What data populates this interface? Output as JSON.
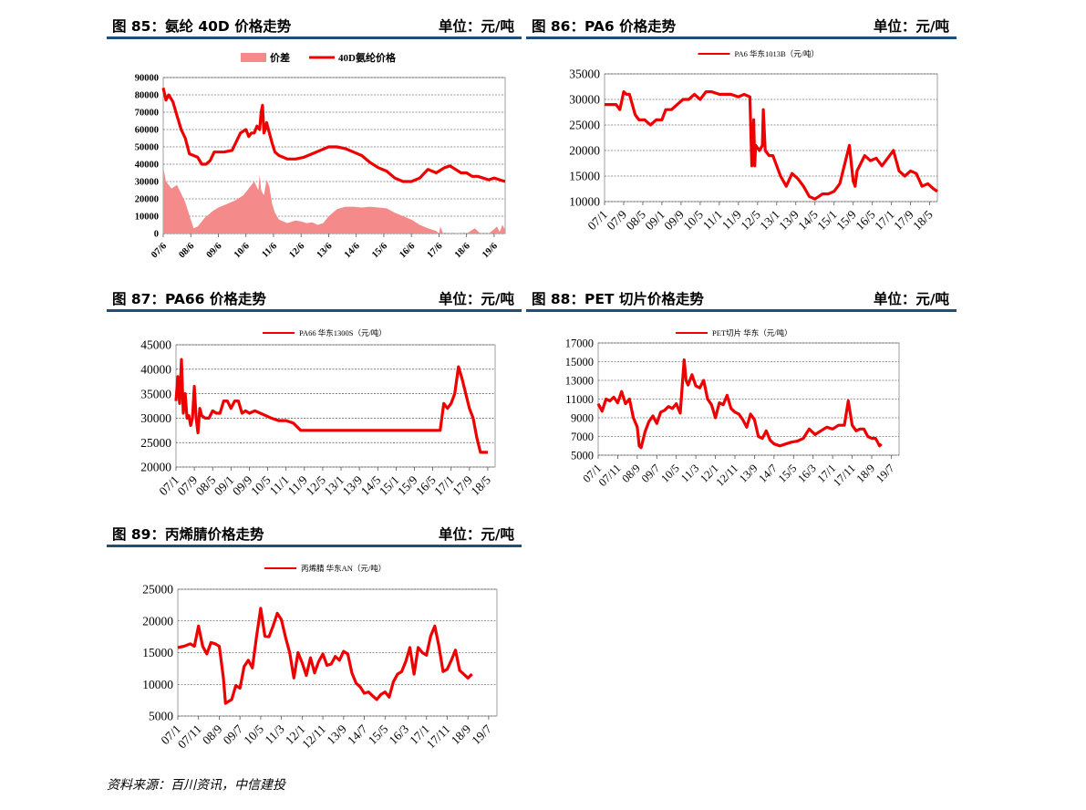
{
  "panels": {
    "p85": {
      "title": "图 85：氨纶 40D 价格走势",
      "unit": "单位：元/吨"
    },
    "p86": {
      "title": "图 86：PA6 价格走势",
      "unit": "单位：元/吨"
    },
    "p87": {
      "title": "图 87：PA66 价格走势",
      "unit": "单位：元/吨"
    },
    "p88": {
      "title": "图 88：PET 切片价格走势",
      "unit": "单位：元/吨"
    },
    "p89": {
      "title": "图 89：丙烯腈价格走势",
      "unit": "单位：元/吨"
    }
  },
  "footer": {
    "source": "资料来源：百川资讯，中信建投"
  },
  "colors": {
    "accent_blue": "#1f4e79",
    "line_red": "#ee0000",
    "area_pink": "#f58a8a"
  },
  "chart_data": [
    {
      "id": "c85",
      "type": "line",
      "legend": [
        "价差",
        "40D氨纶价格"
      ],
      "legend_position": "top-center",
      "ylim": [
        0,
        90000
      ],
      "yticks": [
        "0",
        "10000",
        "20000",
        "30000",
        "40000",
        "50000",
        "60000",
        "70000",
        "80000",
        "90000"
      ],
      "xticks": [
        "07/6",
        "08/6",
        "09/6",
        "10/6",
        "11/6",
        "12/6",
        "13/6",
        "14/6",
        "15/6",
        "16/6",
        "17/6",
        "18/6",
        "19/6"
      ],
      "grid": true,
      "series": [
        {
          "name": "价差",
          "kind": "area",
          "x": [
            0,
            0.1,
            0.3,
            0.5,
            0.8,
            1.0,
            1.1,
            1.25,
            1.5,
            1.8,
            2.0,
            2.3,
            2.6,
            2.9,
            3.1,
            3.3,
            3.45,
            3.5,
            3.55,
            3.65,
            3.75,
            3.85,
            3.95,
            4.05,
            4.2,
            4.5,
            4.8,
            5.0,
            5.2,
            5.4,
            5.6,
            5.8,
            6.0,
            6.3,
            6.6,
            6.9,
            7.2,
            7.5,
            7.8,
            8.1,
            8.4,
            8.7,
            9.0,
            9.3,
            9.6,
            9.9,
            10.0,
            10.05,
            10.15,
            10.3,
            10.5,
            10.8,
            11.0,
            11.3,
            11.5,
            11.8,
            12.0,
            12.1,
            12.2,
            12.3,
            12.4
          ],
          "y": [
            38000,
            30000,
            26000,
            28000,
            18000,
            8000,
            3000,
            4000,
            9000,
            13000,
            15000,
            17000,
            19000,
            22000,
            26000,
            30000,
            25000,
            34000,
            25000,
            22000,
            31000,
            27000,
            17000,
            12000,
            8000,
            6000,
            7500,
            7000,
            6000,
            6500,
            5000,
            6000,
            10000,
            14000,
            15500,
            15500,
            15000,
            15500,
            15000,
            14500,
            12000,
            10000,
            8000,
            5000,
            3000,
            1500,
            0,
            4000,
            0,
            0,
            500,
            0,
            0,
            3000,
            0,
            0,
            2500,
            4000,
            1000,
            5000,
            2000
          ]
        },
        {
          "name": "40D氨纶价格",
          "kind": "line",
          "x": [
            0,
            0.1,
            0.2,
            0.35,
            0.5,
            0.65,
            0.8,
            0.95,
            1.1,
            1.25,
            1.4,
            1.55,
            1.7,
            1.85,
            2.0,
            2.2,
            2.5,
            2.8,
            3.0,
            3.1,
            3.2,
            3.3,
            3.4,
            3.5,
            3.55,
            3.6,
            3.65,
            3.7,
            3.75,
            3.85,
            3.95,
            4.05,
            4.2,
            4.5,
            4.8,
            5.1,
            5.4,
            5.7,
            6.0,
            6.3,
            6.6,
            6.9,
            7.2,
            7.5,
            7.8,
            8.1,
            8.4,
            8.7,
            9.0,
            9.3,
            9.6,
            9.9,
            10.2,
            10.4,
            10.6,
            10.8,
            11.0,
            11.2,
            11.4,
            11.6,
            11.8,
            12.0,
            12.2,
            12.4
          ],
          "y": [
            84000,
            77000,
            80000,
            76000,
            68000,
            60000,
            55000,
            46000,
            45000,
            44000,
            40000,
            40000,
            42000,
            47000,
            47000,
            47000,
            48000,
            58000,
            60000,
            56000,
            58000,
            58000,
            62000,
            60000,
            70000,
            74000,
            58000,
            60000,
            64000,
            58000,
            52000,
            47000,
            45000,
            43000,
            43000,
            44000,
            46000,
            48000,
            50000,
            50000,
            49000,
            47000,
            45000,
            41000,
            38000,
            36000,
            32000,
            30000,
            30000,
            32000,
            37000,
            35000,
            38000,
            39000,
            37000,
            35000,
            35000,
            33000,
            33000,
            32000,
            31000,
            32000,
            31000,
            30000
          ]
        }
      ]
    },
    {
      "id": "c86",
      "type": "line",
      "legend": [
        "PA6 华东1013B（元/吨）"
      ],
      "legend_position": "top-center",
      "ylim": [
        10000,
        35000
      ],
      "yticks": [
        "10000",
        "15000",
        "20000",
        "25000",
        "30000",
        "35000"
      ],
      "xticks": [
        "07/1",
        "07/9",
        "08/5",
        "09/1",
        "09/9",
        "10/5",
        "11/1",
        "11/9",
        "12/5",
        "13/1",
        "13/9",
        "14/5",
        "15/1",
        "15/9",
        "16/5",
        "17/1",
        "17/9",
        "18/5"
      ],
      "grid": true,
      "series": [
        {
          "name": "PA6 华东1013B（元/吨）",
          "x": [
            0,
            0.3,
            0.6,
            0.8,
            1.0,
            1.15,
            1.3,
            1.6,
            1.8,
            2.1,
            2.4,
            2.7,
            3.0,
            3.2,
            3.5,
            3.8,
            4.1,
            4.4,
            4.7,
            5.0,
            5.3,
            5.6,
            6.0,
            6.3,
            6.6,
            7.0,
            7.3,
            7.6,
            7.7,
            7.8,
            7.85,
            7.9,
            8.1,
            8.25,
            8.3,
            8.4,
            8.6,
            8.8,
            9.0,
            9.2,
            9.5,
            9.8,
            10.1,
            10.4,
            10.7,
            11.0,
            11.2,
            11.4,
            11.7,
            12.0,
            12.3,
            12.6,
            12.8,
            13.0,
            13.1,
            13.2,
            13.4,
            13.6,
            13.9,
            14.2,
            14.5,
            14.8,
            15.1,
            15.4,
            15.7,
            16.0,
            16.3,
            16.6,
            16.9,
            17.2,
            17.4
          ],
          "y": [
            29000,
            29000,
            29000,
            28000,
            31500,
            31000,
            31000,
            27000,
            26000,
            26000,
            25000,
            26000,
            26000,
            28000,
            28000,
            29000,
            30000,
            30000,
            31000,
            30000,
            31500,
            31500,
            31000,
            31000,
            31000,
            30500,
            31000,
            30500,
            17000,
            26000,
            17000,
            21000,
            20000,
            21000,
            28000,
            20000,
            19000,
            19000,
            17000,
            15000,
            13000,
            15500,
            14500,
            13000,
            11000,
            10500,
            11000,
            11500,
            11500,
            12000,
            13500,
            18000,
            21000,
            14000,
            13000,
            16000,
            17500,
            19000,
            18000,
            18500,
            17000,
            18500,
            20000,
            16000,
            15000,
            16000,
            15500,
            13000,
            13500,
            12500,
            12000
          ]
        }
      ]
    },
    {
      "id": "c87",
      "type": "line",
      "legend": [
        "PA66 华东1300S（元/吨）"
      ],
      "legend_position": "top-center",
      "ylim": [
        20000,
        45000
      ],
      "yticks": [
        "20000",
        "25000",
        "30000",
        "35000",
        "40000",
        "45000"
      ],
      "xticks": [
        "07/1",
        "07/9",
        "08/5",
        "09/1",
        "09/9",
        "10/5",
        "11/1",
        "11/9",
        "12/5",
        "13/1",
        "13/9",
        "14/5",
        "15/1",
        "15/9",
        "16/5",
        "17/1",
        "17/9",
        "18/5"
      ],
      "grid": true,
      "series": [
        {
          "name": "PA66 华东1300S（元/吨）",
          "x": [
            0,
            0.1,
            0.2,
            0.3,
            0.4,
            0.5,
            0.6,
            0.7,
            0.8,
            0.9,
            1.0,
            1.1,
            1.2,
            1.3,
            1.4,
            1.6,
            1.8,
            2.0,
            2.2,
            2.4,
            2.6,
            2.8,
            3.0,
            3.2,
            3.4,
            3.6,
            3.8,
            4.0,
            4.3,
            4.6,
            4.9,
            5.2,
            5.6,
            6.0,
            6.4,
            6.8,
            7.2,
            7.6,
            8.0,
            8.4,
            8.8,
            9.2,
            9.6,
            10.0,
            10.4,
            10.8,
            11.2,
            11.6,
            12.0,
            12.4,
            12.8,
            13.2,
            13.6,
            14.0,
            14.4,
            14.6,
            14.8,
            15.0,
            15.2,
            15.4,
            15.6,
            15.8,
            16.0,
            16.2,
            16.4,
            16.6,
            16.8,
            17.0
          ],
          "y": [
            33500,
            38500,
            33000,
            42000,
            31000,
            35000,
            30000,
            30500,
            28500,
            30000,
            36500,
            30000,
            27000,
            32000,
            30500,
            30000,
            30000,
            31500,
            31000,
            31000,
            33500,
            33500,
            32000,
            33500,
            33500,
            31000,
            31500,
            31000,
            31500,
            31000,
            30500,
            30000,
            29500,
            29500,
            29000,
            27500,
            27500,
            27500,
            27500,
            27500,
            27500,
            27500,
            27500,
            27500,
            27500,
            27500,
            27500,
            27500,
            27500,
            27500,
            27500,
            27500,
            27500,
            27500,
            27500,
            33000,
            32000,
            33000,
            35000,
            40500,
            38000,
            35000,
            32000,
            30000,
            26000,
            23000,
            23000,
            23000
          ]
        }
      ]
    },
    {
      "id": "c88",
      "type": "line",
      "legend": [
        "PET切片 华东（元/吨）"
      ],
      "legend_position": "top-center",
      "ylim": [
        5000,
        17000
      ],
      "yticks": [
        "5000",
        "7000",
        "9000",
        "11000",
        "13000",
        "15000",
        "17000"
      ],
      "xticks": [
        "07/1",
        "07/11",
        "08/9",
        "09/7",
        "10/5",
        "11/3",
        "12/1",
        "12/11",
        "13/9",
        "14/7",
        "15/5",
        "16/3",
        "17/1",
        "17/11",
        "18/9",
        "19/7"
      ],
      "grid": true,
      "series": [
        {
          "name": "PET切片 华东（元/吨）",
          "x": [
            0,
            0.2,
            0.4,
            0.6,
            0.8,
            1.0,
            1.2,
            1.4,
            1.6,
            1.8,
            2.0,
            2.1,
            2.2,
            2.4,
            2.6,
            2.8,
            3.0,
            3.2,
            3.4,
            3.6,
            3.8,
            4.0,
            4.2,
            4.4,
            4.5,
            4.6,
            4.8,
            5.0,
            5.2,
            5.4,
            5.6,
            5.8,
            6.0,
            6.2,
            6.4,
            6.6,
            6.8,
            7.0,
            7.2,
            7.4,
            7.6,
            7.8,
            8.0,
            8.2,
            8.4,
            8.6,
            8.8,
            9.0,
            9.3,
            9.6,
            9.9,
            10.2,
            10.5,
            10.8,
            11.1,
            11.4,
            11.7,
            12.0,
            12.3,
            12.6,
            12.8,
            13.0,
            13.2,
            13.4,
            13.6,
            13.8,
            14.0,
            14.2,
            14.4,
            14.5
          ],
          "y": [
            10500,
            9700,
            11000,
            10800,
            11200,
            10600,
            11800,
            10500,
            11000,
            9000,
            8000,
            6000,
            5800,
            7500,
            8600,
            9200,
            8400,
            9600,
            9800,
            10200,
            10000,
            10500,
            9500,
            15200,
            13000,
            12500,
            13600,
            12400,
            12200,
            13000,
            11000,
            10400,
            9000,
            10600,
            10400,
            11400,
            10000,
            9600,
            9400,
            8800,
            8000,
            9400,
            8800,
            7000,
            6800,
            7600,
            6600,
            6200,
            6000,
            6200,
            6400,
            6500,
            6800,
            7800,
            7200,
            7600,
            8000,
            7800,
            8200,
            8200,
            10800,
            8200,
            7600,
            7800,
            7800,
            7000,
            6800,
            6800,
            6000,
            6200
          ]
        }
      ]
    },
    {
      "id": "c89",
      "type": "line",
      "legend": [
        "丙烯腈 华东AN（元/吨）"
      ],
      "legend_position": "top-center",
      "ylim": [
        5000,
        25000
      ],
      "yticks": [
        "5000",
        "10000",
        "15000",
        "20000",
        "25000"
      ],
      "xticks": [
        "07/1",
        "07/11",
        "08/9",
        "09/7",
        "10/5",
        "11/3",
        "12/1",
        "12/11",
        "13/9",
        "14/7",
        "15/5",
        "16/3",
        "17/1",
        "17/11",
        "18/9",
        "19/7"
      ],
      "grid": true,
      "series": [
        {
          "name": "丙烯腈 华东AN（元/吨）",
          "x": [
            0,
            0.3,
            0.6,
            0.8,
            1.0,
            1.2,
            1.4,
            1.6,
            1.8,
            2.0,
            2.2,
            2.3,
            2.4,
            2.6,
            2.8,
            3.0,
            3.2,
            3.4,
            3.6,
            3.8,
            4.0,
            4.2,
            4.4,
            4.6,
            4.8,
            5.0,
            5.2,
            5.4,
            5.6,
            5.8,
            6.0,
            6.2,
            6.4,
            6.6,
            6.8,
            7.0,
            7.2,
            7.4,
            7.6,
            7.8,
            8.0,
            8.2,
            8.4,
            8.6,
            8.8,
            9.0,
            9.2,
            9.4,
            9.6,
            9.8,
            10.0,
            10.2,
            10.4,
            10.6,
            10.8,
            11.0,
            11.2,
            11.4,
            11.6,
            11.8,
            12.0,
            12.2,
            12.4,
            12.6,
            12.8,
            13.0,
            13.2,
            13.4,
            13.6,
            13.8,
            14.0,
            14.2
          ],
          "y": [
            15800,
            16000,
            16400,
            16000,
            19200,
            16000,
            14800,
            16600,
            16400,
            16000,
            11000,
            7000,
            7200,
            7600,
            9800,
            9400,
            12800,
            13800,
            12600,
            17600,
            22000,
            17600,
            17500,
            19200,
            21200,
            20200,
            17400,
            15000,
            11000,
            15000,
            13400,
            11400,
            14200,
            11800,
            13600,
            14800,
            13000,
            13200,
            14400,
            13800,
            15200,
            14800,
            11800,
            10200,
            9600,
            8600,
            8800,
            8200,
            7600,
            8400,
            8800,
            8000,
            10400,
            11600,
            12000,
            13600,
            15800,
            11600,
            15800,
            15000,
            14600,
            17600,
            19200,
            16000,
            12000,
            12400,
            13800,
            15400,
            12200,
            11600,
            11000,
            11600
          ]
        }
      ]
    }
  ]
}
